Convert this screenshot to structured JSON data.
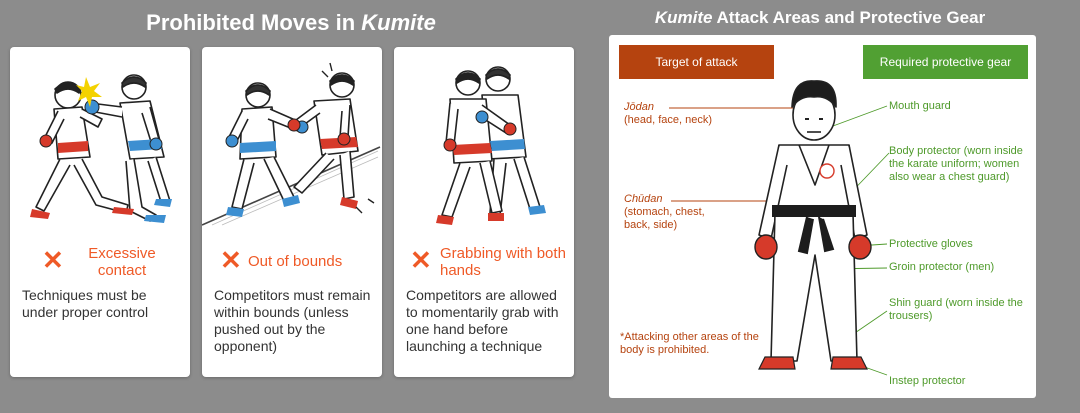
{
  "left_heading": {
    "prefix": "Prohibited Moves in ",
    "em": "Kumite"
  },
  "right_heading": {
    "em": "Kumite",
    "suffix": " Attack Areas and Protective Gear"
  },
  "rules": [
    {
      "title": "Excessive contact",
      "desc": "Techniques must be under proper control"
    },
    {
      "title": "Out of bounds",
      "desc": "Competitors must remain within bounds (unless pushed out by the opponent)"
    },
    {
      "title": "Grabbing with both hands",
      "desc": "Competitors are allowed to momentarily grab with one hand before launching a technique"
    }
  ],
  "target_tag": "Target of attack",
  "gear_tag": "Required protective gear",
  "targets": [
    {
      "name": "Jōdan",
      "detail": "(head, face, neck)"
    },
    {
      "name": "Chūdan",
      "detail": "(stomach, chest, back, side)"
    }
  ],
  "footnote": "*Attacking other areas of the body is prohibited.",
  "gear": [
    "Mouth guard",
    "Body protector (worn inside the karate uniform; women also wear a chest guard)",
    "Protective gloves",
    "Groin protector (men)",
    "Shin guard (worn inside the trousers)",
    "Instep protector"
  ],
  "colors": {
    "accent": "#ef5a27",
    "target": "#b5430f",
    "gear": "#51a033",
    "belt_red": "#d63a2a",
    "belt_blue": "#3d8fd1"
  },
  "icons": {
    "prohibited": "x-mark-icon"
  }
}
